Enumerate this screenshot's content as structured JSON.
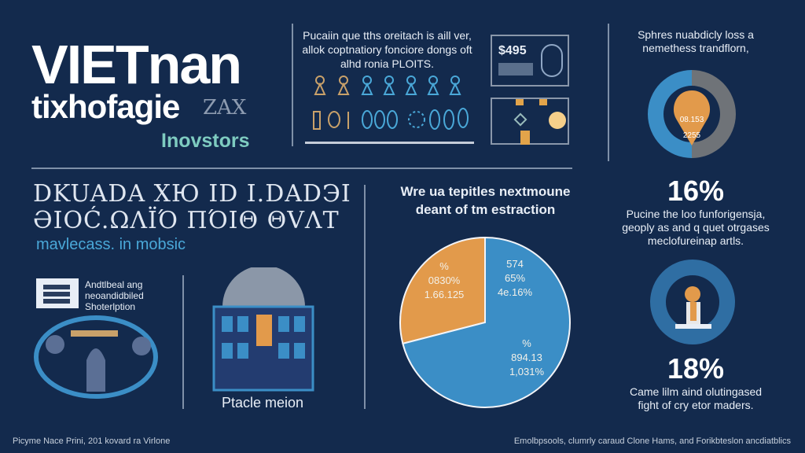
{
  "header": {
    "title": "VIETnan",
    "subtitle": "tixhofagie",
    "subtitle_badge": "ZAX",
    "tagline": "Inovstors"
  },
  "intro": {
    "text": "Pucaiin que tths oreitach is aill ver, allok coptnatiory fonciore dongs oft alhd ronia PLOITS.",
    "price_label": "$495"
  },
  "left_section": {
    "garbled_line1": "DKUADA XЮ ID I.DADЭI",
    "garbled_line2": "ƏIOĆ.ΩΛΪΌ ΠΌΙΘ ΘVΛΤ",
    "highlight": "mavlecass. in mobsic",
    "stack_caption": [
      "Andtlbeal ang",
      "neoandidbiled",
      "Shoterlption"
    ],
    "building_caption": "Ptacle meion"
  },
  "pie_section": {
    "title_line1": "Wre ua tepitles nextmoune",
    "title_line2": "deant of tm estraction"
  },
  "chart_data": {
    "type": "pie",
    "title": "Wre ua tepitles nextmoune deant of tm estraction",
    "slices": [
      {
        "name": "orange",
        "value": 29,
        "color": "#e29a4b",
        "labels": [
          "%",
          "0830%",
          "1.66.125"
        ]
      },
      {
        "name": "blue",
        "value": 71,
        "color": "#3b8ec6",
        "labels": [
          "574",
          "65%",
          "4e.16%",
          "%",
          "894.13",
          "1,031%"
        ]
      }
    ]
  },
  "right_column": {
    "intro_line1": "Sphres nuabdicly loss a",
    "intro_line2": "nemethess trandflorn,",
    "ring_label_1": "08.153",
    "ring_label_2": "2255",
    "stat1": "16%",
    "stat1_text": [
      "Pucine the loo funforigensja,",
      "geoply as and q quet otrgases",
      "meclofureinap artls."
    ],
    "stat2": "18%",
    "stat2_text": [
      "Came lilm aind olutingased",
      "fight of cry etor maders."
    ]
  },
  "footer": {
    "left": "Picyme Nace Prini, 201 kovard ra Virlone",
    "right": "Emolbpsools, clumrly caraud Clone Hams, and Forikbteslon ancdiatblics"
  },
  "colors": {
    "bg": "#132a4d",
    "orange": "#e29a4b",
    "blue": "#3b8ec6",
    "teal": "#7ecbc0",
    "gray": "#6f7378"
  }
}
